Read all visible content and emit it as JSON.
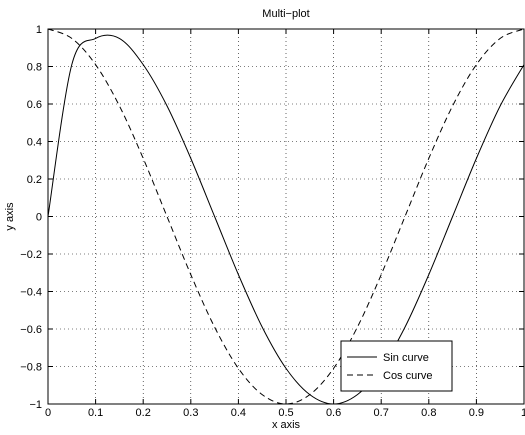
{
  "chart_data": {
    "type": "line",
    "title": "Multi−plot",
    "xlabel": "x axis",
    "ylabel": "y axis",
    "xlim": [
      0,
      1
    ],
    "ylim": [
      -1,
      1
    ],
    "grid": true,
    "legend_position": "bottom-right",
    "x_ticks": [
      "0",
      "0.1",
      "0.2",
      "0.3",
      "0.4",
      "0.5",
      "0.6",
      "0.7",
      "0.8",
      "0.9",
      "1"
    ],
    "y_ticks": [
      "−1",
      "−0.8",
      "−0.6",
      "−0.4",
      "−0.2",
      "0",
      "0.2",
      "0.4",
      "0.6",
      "0.8",
      "1"
    ],
    "x": [
      0,
      0.05,
      0.1,
      0.15,
      0.2,
      0.25,
      0.3,
      0.35,
      0.4,
      0.45,
      0.5,
      0.55,
      0.6,
      0.65,
      0.7,
      0.75,
      0.8,
      0.85,
      0.9,
      0.95,
      1
    ],
    "series": [
      {
        "name": "Sin curve",
        "style": "solid",
        "color": "#000000",
        "values": [
          0,
          0.81,
          0.95,
          0.95,
          0.81,
          0.59,
          0.31,
          0.0,
          -0.31,
          -0.59,
          -0.81,
          -0.95,
          -1.0,
          -0.95,
          -0.81,
          -0.59,
          -0.31,
          0.0,
          0.31,
          0.59,
          0.81
        ]
      },
      {
        "name": "Cos curve",
        "style": "dashed",
        "color": "#000000",
        "values": [
          1.0,
          0.95,
          0.81,
          0.59,
          0.31,
          0.0,
          -0.31,
          -0.59,
          -0.81,
          -0.95,
          -1.0,
          -0.95,
          -0.81,
          -0.59,
          -0.31,
          0.0,
          0.31,
          0.59,
          0.81,
          0.95,
          1.0
        ]
      }
    ]
  }
}
